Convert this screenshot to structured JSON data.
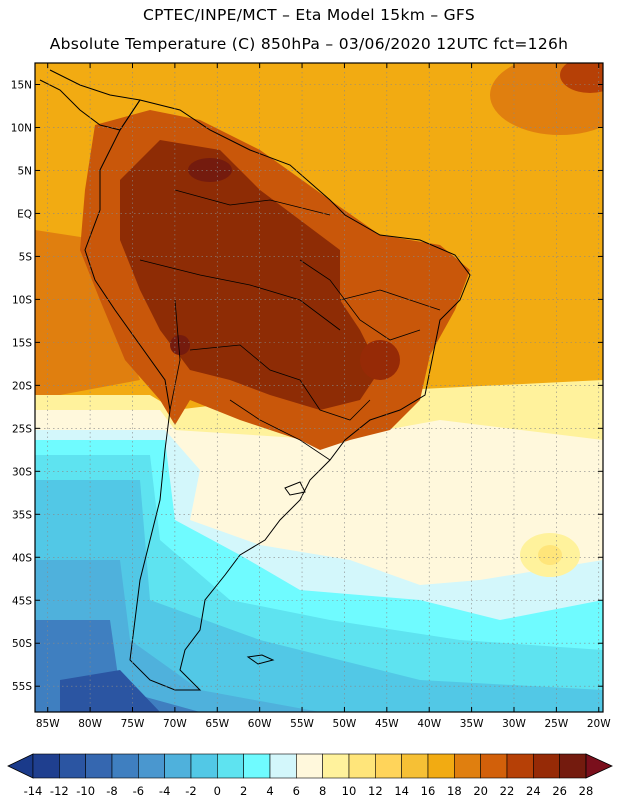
{
  "header": {
    "line1": "CPTEC/INPE/MCT –  Eta Model 15km – GFS",
    "line2": "Absolute Temperature (C) 850hPa – 03/06/2020 12UTC fct=126h"
  },
  "axes": {
    "lat_labels": [
      "15N",
      "10N",
      "5N",
      "EQ",
      "5S",
      "10S",
      "15S",
      "20S",
      "25S",
      "30S",
      "35S",
      "40S",
      "45S",
      "50S",
      "55S"
    ],
    "lon_labels": [
      "85W",
      "80W",
      "75W",
      "70W",
      "65W",
      "60W",
      "55W",
      "50W",
      "45W",
      "40W",
      "35W",
      "30W",
      "25W",
      "20W"
    ]
  },
  "colorbar": {
    "colors": [
      "#1f3f8f",
      "#2b55a2",
      "#3567b0",
      "#3f7fc0",
      "#4a97cf",
      "#4fb1dc",
      "#52c8e6",
      "#5ee3f0",
      "#6ffbff",
      "#d3f7fb",
      "#fff8dc",
      "#fff29c",
      "#ffe57a",
      "#ffd45a",
      "#f6c035",
      "#f2ab12",
      "#e07f0f",
      "#d2600a",
      "#b64006",
      "#962a06",
      "#741b0e"
    ],
    "end_low": "#1a3a8a",
    "end_high": "#7a0f1c",
    "labels": [
      "-14",
      "-12",
      "-10",
      "-8",
      "-6",
      "-4",
      "-2",
      "0",
      "2",
      "4",
      "6",
      "8",
      "10",
      "12",
      "14",
      "16",
      "18",
      "20",
      "22",
      "24",
      "26",
      "28"
    ]
  },
  "map": {
    "ocean_color": "#f2ab12",
    "land_color": "#c9570a",
    "hot_color": "#8e2c05",
    "cold_color": "#52c8e6",
    "deep_cold_color": "#3567b0"
  }
}
